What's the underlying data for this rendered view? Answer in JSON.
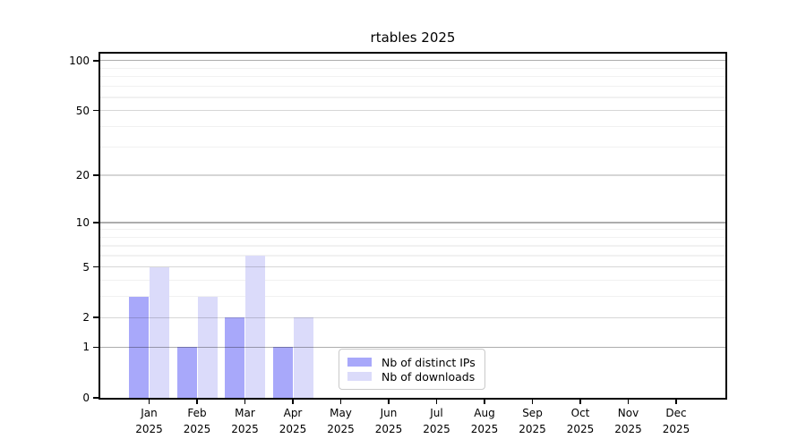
{
  "title": "rtables 2025",
  "chart_data": {
    "type": "bar",
    "title": "rtables 2025",
    "categories": [
      "Jan",
      "Feb",
      "Mar",
      "Apr",
      "May",
      "Jun",
      "Jul",
      "Aug",
      "Sep",
      "Oct",
      "Nov",
      "Dec"
    ],
    "year_label": "2025",
    "series": [
      {
        "name": "Nb of distinct IPs",
        "color": "#a8a8fa",
        "values": [
          3,
          1,
          2,
          1,
          0,
          0,
          0,
          0,
          0,
          0,
          0,
          0
        ]
      },
      {
        "name": "Nb of downloads",
        "color": "#dbdbfa",
        "values": [
          5,
          3,
          6,
          2,
          0,
          0,
          0,
          0,
          0,
          0,
          0,
          0
        ]
      }
    ],
    "xlabel": "",
    "ylabel": "",
    "y_scale": "log1p",
    "ylim": [
      0,
      110
    ],
    "y_tick_labels": [
      "0",
      "1",
      "2",
      "5",
      "10",
      "20",
      "50",
      "100"
    ],
    "y_ticks": [
      0,
      1,
      2,
      5,
      10,
      20,
      50,
      100
    ],
    "y_decade_ticks": [
      1,
      10,
      100
    ],
    "y_minor_ticks": [
      3,
      4,
      6,
      7,
      8,
      9,
      30,
      40,
      60,
      70,
      80,
      90
    ],
    "grid": true,
    "legend_position": "inside-bottom-center"
  },
  "legend": {
    "items": [
      {
        "label": "Nb of distinct IPs",
        "color": "#a8a8fa"
      },
      {
        "label": "Nb of downloads",
        "color": "#dbdbfa"
      }
    ]
  },
  "colors": {
    "background": "#ffffff",
    "spine": "#000000",
    "grid_major": "#d8d8d8",
    "grid_decade": "#aeaeae",
    "grid_minor": "#f1f1f1",
    "bar_distinct_ips": "#a8a8fa",
    "bar_downloads": "#dbdbfa"
  }
}
